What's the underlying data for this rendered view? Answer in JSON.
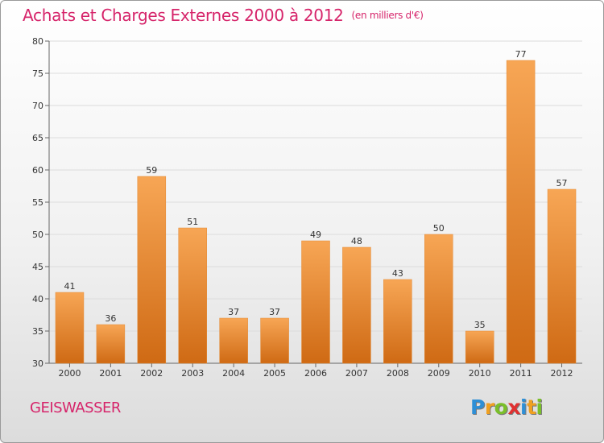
{
  "header": {
    "title": "Achats et Charges Externes 2000 à 2012",
    "unit": "(en milliers d'€)"
  },
  "footer": {
    "location": "GEISWASSER",
    "logo": [
      {
        "ch": "P",
        "color": "#2e8fd6"
      },
      {
        "ch": "r",
        "color": "#f0a020"
      },
      {
        "ch": "o",
        "color": "#7abf2a"
      },
      {
        "ch": "x",
        "color": "#e03030"
      },
      {
        "ch": "i",
        "color": "#2e8fd6"
      },
      {
        "ch": "t",
        "color": "#f0a020"
      },
      {
        "ch": "i",
        "color": "#7abf2a"
      }
    ]
  },
  "chart_data": {
    "type": "bar",
    "categories": [
      "2000",
      "2001",
      "2002",
      "2003",
      "2004",
      "2005",
      "2006",
      "2007",
      "2008",
      "2009",
      "2010",
      "2011",
      "2012"
    ],
    "values": [
      41,
      36,
      59,
      51,
      37,
      37,
      49,
      48,
      43,
      50,
      35,
      77,
      57
    ],
    "ylim": [
      30,
      80
    ],
    "yticks": [
      30,
      35,
      40,
      45,
      50,
      55,
      60,
      65,
      70,
      75,
      80
    ],
    "grid": true,
    "bar_color": "#f0902a"
  }
}
